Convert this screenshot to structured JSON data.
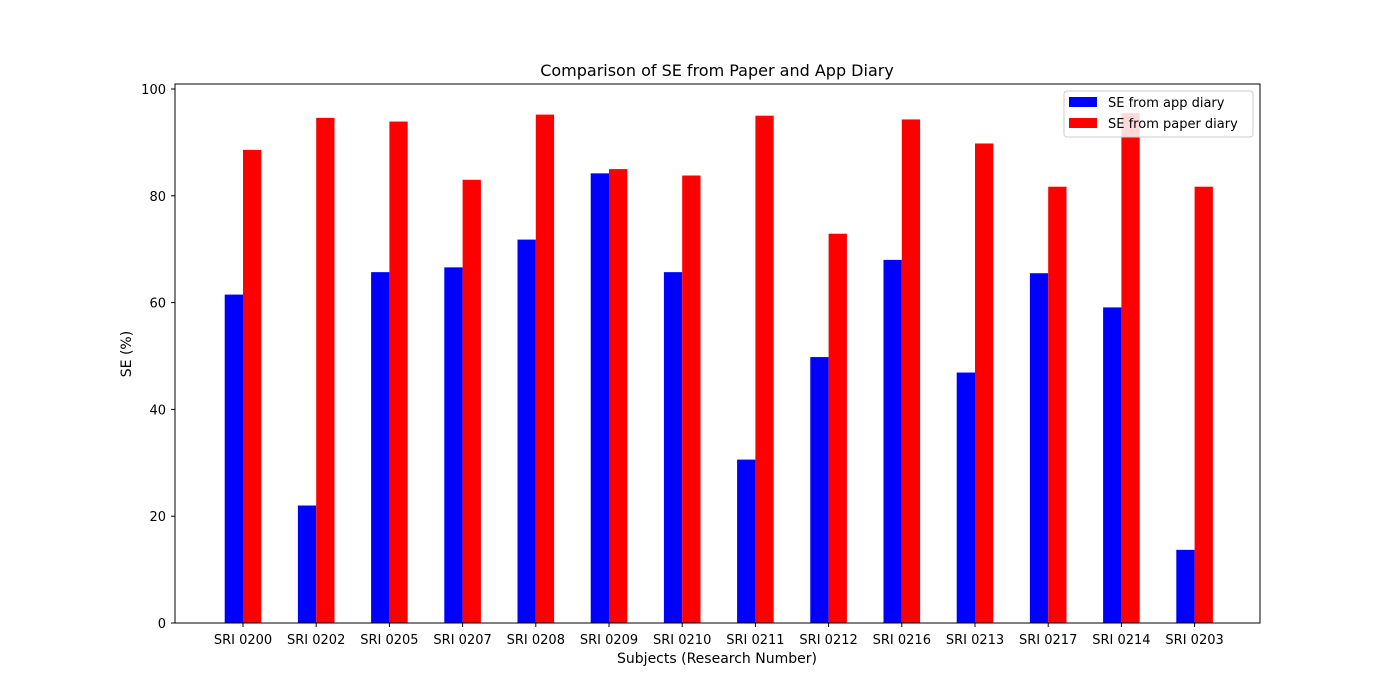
{
  "chart_data": {
    "type": "bar",
    "title": "Comparison of SE from Paper and App Diary",
    "xlabel": "Subjects (Research Number)",
    "ylabel": "SE (%)",
    "ylim": [
      0,
      100
    ],
    "yticks": [
      0,
      20,
      40,
      60,
      80,
      100
    ],
    "grid": false,
    "legend_position": "top-right",
    "categories": [
      "SRI 0200",
      "SRI 0202",
      "SRI 0205",
      "SRI 0207",
      "SRI 0208",
      "SRI 0209",
      "SRI 0210",
      "SRI 0211",
      "SRI 0212",
      "SRI 0216",
      "SRI 0213",
      "SRI 0217",
      "SRI 0214",
      "SRI 0203"
    ],
    "series": [
      {
        "name": "SE from app diary",
        "color": "#0000ff",
        "values": [
          61.5,
          22.0,
          65.7,
          66.6,
          71.8,
          84.2,
          65.7,
          30.6,
          49.8,
          68.0,
          46.9,
          65.5,
          59.1,
          13.7
        ]
      },
      {
        "name": "SE from paper diary",
        "color": "#ff0000",
        "values": [
          88.6,
          94.6,
          93.9,
          83.0,
          95.2,
          85.0,
          83.8,
          95.0,
          72.9,
          94.3,
          89.8,
          81.7,
          95.5,
          81.7
        ]
      }
    ]
  }
}
